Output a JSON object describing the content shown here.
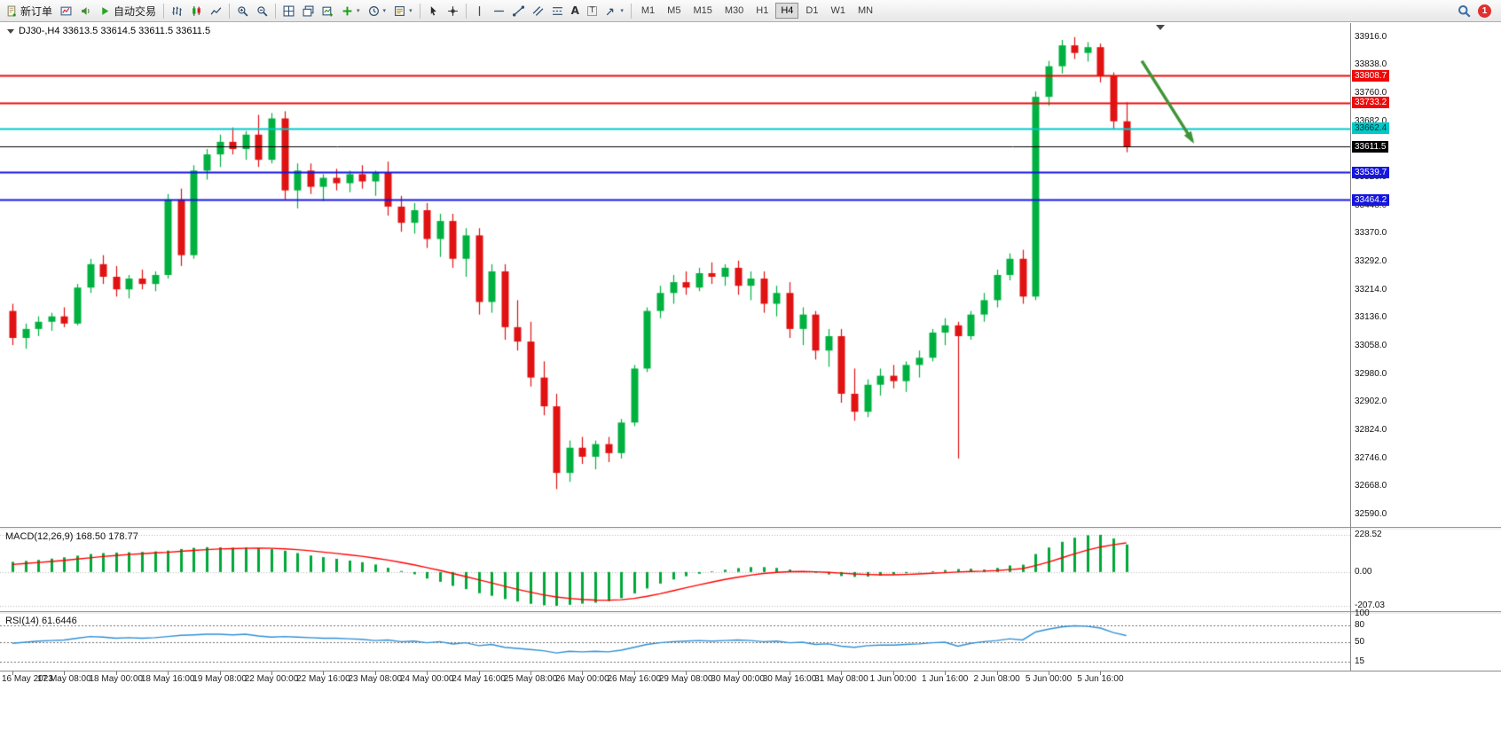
{
  "toolbar": {
    "new_order_label": "新订单",
    "autotrading_label": "自动交易",
    "timeframes": [
      "M1",
      "M5",
      "M15",
      "M30",
      "H1",
      "H4",
      "D1",
      "W1",
      "MN"
    ],
    "active_timeframe": "H4",
    "notification_badge": "1",
    "icon_names": [
      "new-order-icon",
      "charts-icon",
      "sound-icon",
      "autotrading-icon",
      "bar-chart-icon",
      "candlestick-chart-icon",
      "line-chart-icon",
      "zoom-in-icon",
      "zoom-out-icon",
      "tile-windows-icon",
      "cascade-windows-icon",
      "new-chart-icon",
      "indicators-icon",
      "periods-icon",
      "templates-icon",
      "cursor-icon",
      "crosshair-icon",
      "vertical-line-icon",
      "horizontal-line-icon",
      "trendline-icon",
      "channel-icon",
      "fibonacci-icon",
      "text-icon",
      "label-icon",
      "arrows-icon",
      "search-icon"
    ]
  },
  "chart": {
    "symbol_info": "DJ30-,H4  33613.5 33614.5 33611.5 33611.5",
    "colors": {
      "up": "#00b140",
      "down": "#e01212",
      "macd_hist": "#00a838",
      "macd_signal": "#ff0000",
      "rsi_line": "#2f8fd5",
      "level_red": "#ee0a0a",
      "level_blue": "#1616e0",
      "level_cyan": "#00c8c8",
      "current_price_line": "#000000"
    }
  },
  "chart_data": {
    "type": "candlestick",
    "title": "DJ30-,H4",
    "ohlc_display": {
      "open": "33613.5",
      "high": "33614.5",
      "low": "33611.5",
      "close": "33611.5"
    },
    "bars_per_label": 4,
    "price_axis": {
      "min": 32555,
      "max": 33955,
      "tick_labels": [
        "33916.0",
        "33838.0",
        "33760.0",
        "33682.0",
        "33604.0",
        "33526.0",
        "33448.0",
        "33370.0",
        "33292.0",
        "33214.0",
        "33136.0",
        "33058.0",
        "32980.0",
        "32902.0",
        "32824.0",
        "32746.0",
        "32668.0",
        "32590.0"
      ]
    },
    "time_labels": [
      "16 May 2023",
      "17 May 08:00",
      "18 May 00:00",
      "18 May 16:00",
      "19 May 08:00",
      "22 May 00:00",
      "22 May 16:00",
      "23 May 08:00",
      "24 May 00:00",
      "24 May 16:00",
      "25 May 08:00",
      "26 May 00:00",
      "26 May 16:00",
      "29 May 08:00",
      "30 May 00:00",
      "30 May 16:00",
      "31 May 08:00",
      "1 Jun 00:00",
      "1 Jun 16:00",
      "2 Jun 08:00",
      "5 Jun 00:00",
      "5 Jun 16:00"
    ],
    "levels": [
      {
        "price": 33808.7,
        "label": "33808.7",
        "color": "red"
      },
      {
        "price": 33733.2,
        "label": "33733.2",
        "color": "red"
      },
      {
        "price": 33662.4,
        "label": "33662.4",
        "color": "cyan"
      },
      {
        "price": 33611.5,
        "label": "33611.5",
        "color": "black",
        "role": "current"
      },
      {
        "price": 33539.7,
        "label": "33539.7",
        "color": "blue"
      },
      {
        "price": 33464.2,
        "label": "33464.2",
        "color": "blue"
      }
    ],
    "annotations": [
      {
        "type": "arrow",
        "x1_bar": 87.2,
        "price1": 33850,
        "x2_bar": 91.1,
        "price2": 33628,
        "color": "#3f9435"
      }
    ],
    "candles": [
      [
        33155,
        33175,
        33060,
        33080
      ],
      [
        33080,
        33120,
        33050,
        33105
      ],
      [
        33105,
        33140,
        33085,
        33125
      ],
      [
        33125,
        33150,
        33100,
        33140
      ],
      [
        33140,
        33165,
        33110,
        33120
      ],
      [
        33120,
        33230,
        33115,
        33220
      ],
      [
        33220,
        33300,
        33205,
        33285
      ],
      [
        33285,
        33310,
        33230,
        33250
      ],
      [
        33250,
        33280,
        33195,
        33215
      ],
      [
        33215,
        33255,
        33190,
        33245
      ],
      [
        33245,
        33270,
        33215,
        33230
      ],
      [
        33230,
        33265,
        33210,
        33255
      ],
      [
        33255,
        33480,
        33245,
        33465
      ],
      [
        33465,
        33495,
        33280,
        33310
      ],
      [
        33310,
        33560,
        33300,
        33545
      ],
      [
        33545,
        33605,
        33520,
        33590
      ],
      [
        33590,
        33645,
        33555,
        33625
      ],
      [
        33625,
        33665,
        33590,
        33605
      ],
      [
        33605,
        33655,
        33575,
        33645
      ],
      [
        33645,
        33700,
        33555,
        33575
      ],
      [
        33575,
        33705,
        33565,
        33690
      ],
      [
        33690,
        33710,
        33465,
        33490
      ],
      [
        33490,
        33565,
        33440,
        33545
      ],
      [
        33545,
        33565,
        33480,
        33500
      ],
      [
        33500,
        33535,
        33460,
        33525
      ],
      [
        33525,
        33550,
        33490,
        33510
      ],
      [
        33510,
        33545,
        33485,
        33535
      ],
      [
        33535,
        33560,
        33495,
        33515
      ],
      [
        33515,
        33545,
        33475,
        33540
      ],
      [
        33540,
        33570,
        33420,
        33445
      ],
      [
        33445,
        33475,
        33375,
        33400
      ],
      [
        33400,
        33455,
        33370,
        33435
      ],
      [
        33435,
        33455,
        33330,
        33355
      ],
      [
        33355,
        33425,
        33305,
        33405
      ],
      [
        33405,
        33425,
        33275,
        33300
      ],
      [
        33300,
        33385,
        33250,
        33365
      ],
      [
        33365,
        33385,
        33145,
        33180
      ],
      [
        33180,
        33285,
        33150,
        33265
      ],
      [
        33265,
        33285,
        33075,
        33110
      ],
      [
        33110,
        33185,
        33045,
        33070
      ],
      [
        33070,
        33125,
        32945,
        32970
      ],
      [
        32970,
        33015,
        32865,
        32890
      ],
      [
        32890,
        32925,
        32660,
        32705
      ],
      [
        32705,
        32795,
        32680,
        32775
      ],
      [
        32775,
        32805,
        32730,
        32750
      ],
      [
        32750,
        32795,
        32715,
        32785
      ],
      [
        32785,
        32805,
        32735,
        32760
      ],
      [
        32760,
        32855,
        32745,
        32845
      ],
      [
        32845,
        33005,
        32835,
        32995
      ],
      [
        32995,
        33165,
        32985,
        33155
      ],
      [
        33155,
        33225,
        33135,
        33205
      ],
      [
        33205,
        33255,
        33175,
        33235
      ],
      [
        33235,
        33265,
        33200,
        33220
      ],
      [
        33220,
        33275,
        33210,
        33260
      ],
      [
        33260,
        33290,
        33230,
        33250
      ],
      [
        33250,
        33285,
        33225,
        33275
      ],
      [
        33275,
        33295,
        33200,
        33225
      ],
      [
        33225,
        33265,
        33185,
        33245
      ],
      [
        33245,
        33265,
        33150,
        33175
      ],
      [
        33175,
        33225,
        33140,
        33205
      ],
      [
        33205,
        33235,
        33080,
        33105
      ],
      [
        33105,
        33165,
        33060,
        33145
      ],
      [
        33145,
        33155,
        33020,
        33045
      ],
      [
        33045,
        33105,
        33000,
        33085
      ],
      [
        33085,
        33105,
        32900,
        32925
      ],
      [
        32925,
        32995,
        32850,
        32875
      ],
      [
        32875,
        32965,
        32860,
        32950
      ],
      [
        32950,
        32995,
        32920,
        32975
      ],
      [
        32975,
        33005,
        32940,
        32960
      ],
      [
        32960,
        33015,
        32930,
        33005
      ],
      [
        33005,
        33045,
        32970,
        33025
      ],
      [
        33025,
        33105,
        33015,
        33095
      ],
      [
        33095,
        33135,
        33060,
        33115
      ],
      [
        33115,
        33125,
        32745,
        33085
      ],
      [
        33085,
        33155,
        33075,
        33145
      ],
      [
        33145,
        33205,
        33125,
        33185
      ],
      [
        33185,
        33270,
        33165,
        33255
      ],
      [
        33255,
        33315,
        33240,
        33300
      ],
      [
        33300,
        33325,
        33175,
        33195
      ],
      [
        33195,
        33765,
        33185,
        33750
      ],
      [
        33750,
        33850,
        33725,
        33835
      ],
      [
        33835,
        33908,
        33815,
        33893
      ],
      [
        33893,
        33916,
        33855,
        33872
      ],
      [
        33872,
        33902,
        33848,
        33888
      ],
      [
        33888,
        33898,
        33790,
        33808
      ],
      [
        33808,
        33818,
        33660,
        33682
      ],
      [
        33682,
        33735,
        33596,
        33611.5
      ]
    ],
    "macd": {
      "label": "MACD(12,26,9)",
      "display": "MACD(12,26,9) 168.50 178.77",
      "value_main": 168.5,
      "value_signal": 178.77,
      "range": [
        -240,
        260
      ],
      "axis_levels": [
        228.52,
        0,
        -207.03
      ],
      "axis_labels": [
        "228.52",
        "0.00",
        "-207.03"
      ],
      "histogram": [
        62,
        68,
        74,
        82,
        90,
        100,
        110,
        116,
        119,
        121,
        123,
        126,
        131,
        141,
        148,
        152,
        151,
        149,
        150,
        146,
        140,
        130,
        116,
        101,
        91,
        81,
        70,
        60,
        46,
        26,
        6,
        -14,
        -40,
        -60,
        -85,
        -105,
        -130,
        -146,
        -166,
        -181,
        -195,
        -204,
        -207,
        -201,
        -194,
        -188,
        -179,
        -160,
        -131,
        -101,
        -71,
        -46,
        -26,
        -11,
        4,
        14,
        24,
        30,
        30,
        25,
        15,
        5,
        -5,
        -15,
        -25,
        -30,
        -28,
        -22,
        -15,
        -8,
        -2,
        5,
        12,
        18,
        20,
        15,
        25,
        40,
        45,
        110,
        150,
        185,
        210,
        225,
        228,
        205,
        168.5
      ],
      "signal": [
        46,
        52,
        58,
        64,
        71,
        79,
        87,
        95,
        101,
        107,
        112,
        117,
        121,
        127,
        132,
        137,
        141,
        143,
        145,
        146,
        145,
        142,
        137,
        130,
        122,
        114,
        105,
        96,
        85,
        73,
        59,
        44,
        27,
        10,
        -9,
        -28,
        -48,
        -67,
        -87,
        -106,
        -124,
        -140,
        -153,
        -162,
        -168,
        -172,
        -173,
        -170,
        -162,
        -149,
        -133,
        -115,
        -97,
        -79,
        -62,
        -46,
        -32,
        -19,
        -9,
        -2,
        2,
        3,
        1,
        -2,
        -7,
        -12,
        -15,
        -17,
        -17,
        -15,
        -12,
        -8,
        -4,
        0,
        3,
        5,
        9,
        15,
        21,
        39,
        61,
        86,
        111,
        134,
        153,
        167,
        178.77
      ]
    },
    "rsi": {
      "label": "RSI(14)",
      "display": "RSI(14) 61.6446",
      "value": 61.6446,
      "range": [
        0,
        100
      ],
      "levels": [
        80,
        50,
        15
      ],
      "axis_labels": [
        [
          100,
          "100"
        ],
        [
          80,
          "80"
        ],
        [
          50,
          "50"
        ],
        [
          15,
          "15"
        ]
      ],
      "values": [
        48,
        50,
        52,
        53,
        54,
        57,
        60,
        59,
        57,
        58,
        57,
        58,
        60,
        62,
        63,
        64,
        64,
        63,
        64,
        61,
        59,
        60,
        59,
        58,
        57,
        57,
        56,
        55,
        53,
        54,
        51,
        52,
        49,
        51,
        47,
        49,
        44,
        46,
        41,
        39,
        37,
        35,
        31,
        34,
        33,
        34,
        33,
        36,
        41,
        46,
        49,
        51,
        52,
        53,
        52,
        53,
        54,
        53,
        51,
        52,
        49,
        50,
        46,
        47,
        43,
        41,
        44,
        45,
        45,
        46,
        47,
        49,
        50,
        43,
        48,
        51,
        53,
        56,
        54,
        68,
        73,
        77,
        79,
        78,
        75,
        67,
        61.64
      ]
    }
  }
}
